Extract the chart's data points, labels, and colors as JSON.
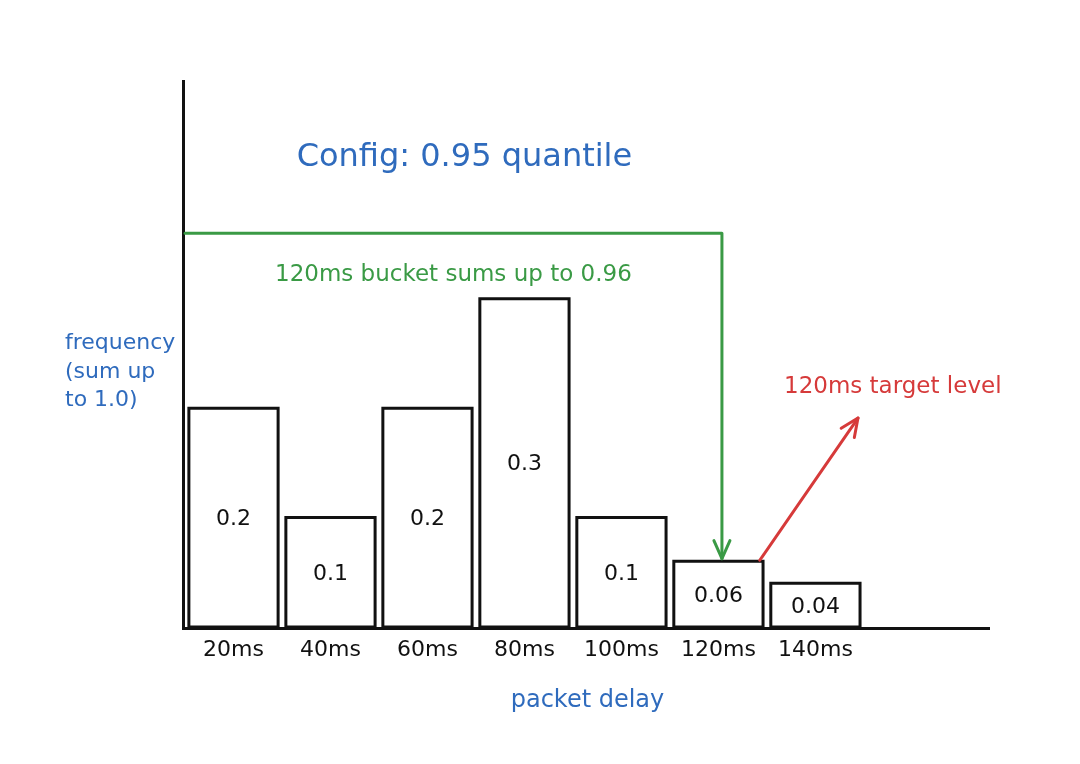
{
  "chart_data": {
    "type": "bar",
    "title": "Config: 0.95 quantile",
    "xlabel": "packet delay",
    "ylabel": "frequency\n(sum up\nto 1.0)",
    "categories": [
      "20ms",
      "40ms",
      "60ms",
      "80ms",
      "100ms",
      "120ms",
      "140ms"
    ],
    "values": [
      0.2,
      0.1,
      0.2,
      0.3,
      0.1,
      0.06,
      0.04
    ],
    "color": "#ffffff",
    "ylim": [
      0,
      0.5
    ],
    "tick_labels": "x",
    "data_labels": true,
    "annotations": [
      "120ms bucket sums up to 0.96",
      "120ms target level"
    ]
  }
}
